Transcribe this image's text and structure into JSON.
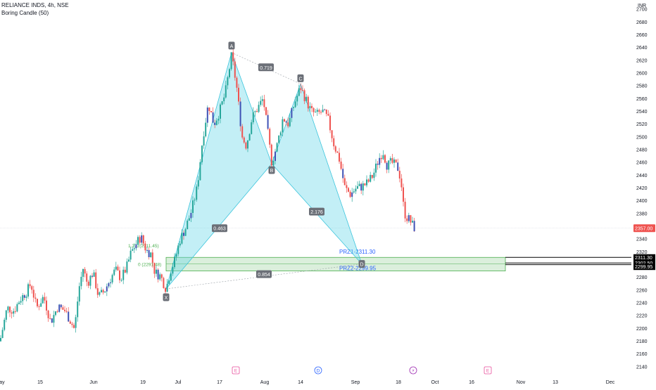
{
  "header": {
    "title": "RELIANCE INDS, 4h, NSE",
    "indicator": "Boring Candle (50)",
    "currency": "INR"
  },
  "chart_data": {
    "type": "candlestick",
    "y_range": [
      2130,
      2710
    ],
    "y_ticks": [
      2140,
      2160,
      2180,
      2200,
      2220,
      2240,
      2260,
      2280,
      2300,
      2320,
      2340,
      2360,
      2380,
      2400,
      2420,
      2440,
      2460,
      2480,
      2500,
      2520,
      2540,
      2560,
      2580,
      2600,
      2620,
      2640,
      2660,
      2680,
      2700
    ],
    "x_ticks": [
      {
        "label": "May",
        "t": 0
      },
      {
        "label": "15",
        "t": 57
      },
      {
        "label": "Jun",
        "t": 133
      },
      {
        "label": "19",
        "t": 203
      },
      {
        "label": "Jul",
        "t": 253
      },
      {
        "label": "17",
        "t": 312
      },
      {
        "label": "Aug",
        "t": 376
      },
      {
        "label": "14",
        "t": 427
      },
      {
        "label": "Sep",
        "t": 505
      },
      {
        "label": "18",
        "t": 566
      },
      {
        "label": "Oct",
        "t": 618
      },
      {
        "label": "16",
        "t": 670
      },
      {
        "label": "Nov",
        "t": 740
      },
      {
        "label": "13",
        "t": 789
      },
      {
        "label": "Dec",
        "t": 867
      }
    ],
    "last_price": {
      "label": "2357.00",
      "value": 2357.0
    },
    "price_lines": [
      {
        "label": "2311.30",
        "value": 2311.3
      },
      {
        "label": "2302.50",
        "value": 2302.5
      },
      {
        "label": "2299.95",
        "value": 2299.95
      }
    ],
    "harmonic": {
      "points": [
        {
          "name": "X",
          "t": 236,
          "value": 2262
        },
        {
          "name": "A",
          "t": 329,
          "value": 2632
        },
        {
          "name": "B",
          "t": 386,
          "value": 2458
        },
        {
          "name": "C",
          "t": 427,
          "value": 2583
        },
        {
          "name": "D",
          "t": 514,
          "value": 2301
        }
      ],
      "ratios": [
        {
          "label": "0.719",
          "t": 378,
          "value": 2609
        },
        {
          "label": "0.463",
          "t": 312,
          "value": 2357
        },
        {
          "label": "2.176",
          "t": 450,
          "value": 2383
        },
        {
          "label": "0.854",
          "t": 375,
          "value": 2285
        }
      ]
    },
    "prz": {
      "top": 2311.3,
      "bottom": 2290,
      "start_t": 236,
      "end_t": 718,
      "label1": "PRZ1-2311.30",
      "label2": "PRZ2-2299.95",
      "fib_labels": [
        "1.272(2311.45)",
        "0 (2291.48)"
      ]
    },
    "events": [
      {
        "letter": "E",
        "t": 335,
        "color": "#e84f9c"
      },
      {
        "letter": "D",
        "t": 452,
        "color": "#2962ff"
      },
      {
        "letter": "⚡",
        "t": 587,
        "color": "#9c27b0"
      },
      {
        "letter": "E",
        "t": 693,
        "color": "#e84f9c"
      }
    ],
    "candle_keypoints": [
      [
        0,
        2180
      ],
      [
        10,
        2232
      ],
      [
        20,
        2228
      ],
      [
        28,
        2245
      ],
      [
        38,
        2258
      ],
      [
        44,
        2270
      ],
      [
        52,
        2232
      ],
      [
        62,
        2250
      ],
      [
        72,
        2210
      ],
      [
        82,
        2234
      ],
      [
        92,
        2228
      ],
      [
        100,
        2212
      ],
      [
        106,
        2198
      ],
      [
        112,
        2262
      ],
      [
        118,
        2294
      ],
      [
        124,
        2270
      ],
      [
        132,
        2288
      ],
      [
        140,
        2250
      ],
      [
        148,
        2258
      ],
      [
        156,
        2276
      ],
      [
        164,
        2292
      ],
      [
        172,
        2278
      ],
      [
        180,
        2296
      ],
      [
        186,
        2318
      ],
      [
        192,
        2330
      ],
      [
        200,
        2344
      ],
      [
        208,
        2322
      ],
      [
        214,
        2318
      ],
      [
        220,
        2288
      ],
      [
        228,
        2282
      ],
      [
        236,
        2262
      ],
      [
        242,
        2290
      ],
      [
        248,
        2306
      ],
      [
        256,
        2340
      ],
      [
        264,
        2358
      ],
      [
        272,
        2384
      ],
      [
        280,
        2420
      ],
      [
        288,
        2498
      ],
      [
        296,
        2552
      ],
      [
        304,
        2520
      ],
      [
        312,
        2540
      ],
      [
        320,
        2568
      ],
      [
        329,
        2628
      ],
      [
        336,
        2580
      ],
      [
        344,
        2500
      ],
      [
        350,
        2486
      ],
      [
        358,
        2530
      ],
      [
        366,
        2545
      ],
      [
        374,
        2560
      ],
      [
        380,
        2510
      ],
      [
        386,
        2460
      ],
      [
        394,
        2488
      ],
      [
        402,
        2530
      ],
      [
        410,
        2520
      ],
      [
        418,
        2552
      ],
      [
        427,
        2578
      ],
      [
        434,
        2560
      ],
      [
        442,
        2540
      ],
      [
        450,
        2535
      ],
      [
        458,
        2540
      ],
      [
        466,
        2528
      ],
      [
        474,
        2490
      ],
      [
        482,
        2465
      ],
      [
        490,
        2420
      ],
      [
        498,
        2410
      ],
      [
        506,
        2420
      ],
      [
        514,
        2422
      ],
      [
        522,
        2428
      ],
      [
        530,
        2440
      ],
      [
        538,
        2465
      ],
      [
        544,
        2478
      ],
      [
        550,
        2455
      ],
      [
        556,
        2460
      ],
      [
        562,
        2455
      ],
      [
        566,
        2450
      ],
      [
        570,
        2428
      ],
      [
        574,
        2382
      ],
      [
        578,
        2374
      ],
      [
        582,
        2370
      ],
      [
        586,
        2362
      ],
      [
        589,
        2357
      ]
    ]
  }
}
